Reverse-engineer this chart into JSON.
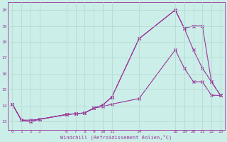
{
  "xlabel": "Windchill (Refroidissement éolien,°C)",
  "background_color": "#cceee8",
  "grid_color": "#aaddcc",
  "line_color": "#993399",
  "xlim": [
    -0.5,
    23.5
  ],
  "ylim": [
    12.5,
    20.5
  ],
  "xticks": [
    0,
    1,
    2,
    3,
    6,
    7,
    8,
    9,
    10,
    11,
    14,
    18,
    19,
    20,
    21,
    22,
    23
  ],
  "yticks": [
    13,
    14,
    15,
    16,
    17,
    18,
    19,
    20
  ],
  "line1_x": [
    0,
    1,
    2,
    3,
    6,
    7,
    8,
    9,
    10,
    11,
    14,
    18,
    19,
    20,
    21,
    22,
    23
  ],
  "line1_y": [
    14.1,
    13.1,
    13.1,
    13.15,
    13.45,
    13.5,
    13.55,
    13.85,
    13.95,
    14.1,
    14.45,
    17.5,
    16.35,
    15.5,
    15.5,
    14.65,
    14.65
  ],
  "line2_x": [
    0,
    1,
    2,
    3,
    6,
    7,
    8,
    9,
    10,
    11,
    14,
    18,
    19,
    20,
    21,
    22,
    23
  ],
  "line2_y": [
    14.1,
    13.1,
    13.0,
    13.15,
    13.45,
    13.5,
    13.55,
    13.85,
    14.05,
    14.55,
    18.2,
    20.0,
    18.85,
    19.0,
    19.0,
    15.5,
    14.65
  ],
  "line3_x": [
    0,
    1,
    2,
    3,
    6,
    7,
    8,
    9,
    10,
    11,
    14,
    18,
    19,
    20,
    21,
    22,
    23
  ],
  "line3_y": [
    14.1,
    13.1,
    13.0,
    13.15,
    13.45,
    13.5,
    13.55,
    13.85,
    14.05,
    14.55,
    18.2,
    20.0,
    18.85,
    17.5,
    16.35,
    15.5,
    14.65
  ]
}
